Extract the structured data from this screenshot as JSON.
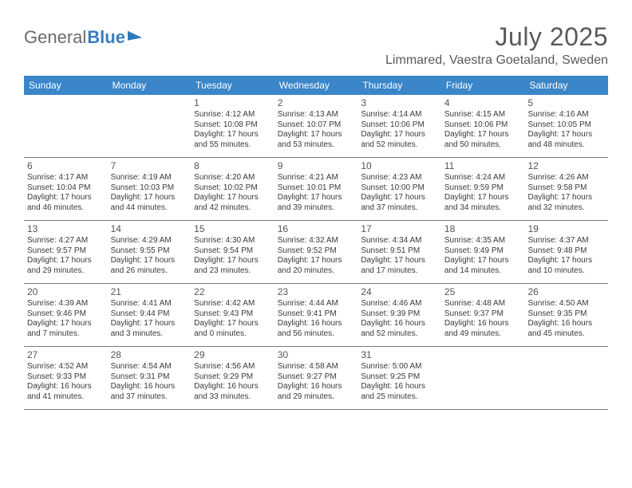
{
  "brand": {
    "part1": "General",
    "part2": "Blue"
  },
  "header": {
    "month_title": "July 2025",
    "location": "Limmared, Vaestra Goetaland, Sweden"
  },
  "colors": {
    "header_bg": "#3a86c8",
    "header_text": "#ffffff",
    "border": "#7a7a7a",
    "body_text": "#3a3a3a",
    "title_text": "#5a5a5a",
    "brand_blue": "#3a7ebf"
  },
  "calendar": {
    "days_of_week": [
      "Sunday",
      "Monday",
      "Tuesday",
      "Wednesday",
      "Thursday",
      "Friday",
      "Saturday"
    ],
    "leading_blanks": 2,
    "days": [
      {
        "n": "1",
        "sunrise": "Sunrise: 4:12 AM",
        "sunset": "Sunset: 10:08 PM",
        "day1": "Daylight: 17 hours",
        "day2": "and 55 minutes."
      },
      {
        "n": "2",
        "sunrise": "Sunrise: 4:13 AM",
        "sunset": "Sunset: 10:07 PM",
        "day1": "Daylight: 17 hours",
        "day2": "and 53 minutes."
      },
      {
        "n": "3",
        "sunrise": "Sunrise: 4:14 AM",
        "sunset": "Sunset: 10:06 PM",
        "day1": "Daylight: 17 hours",
        "day2": "and 52 minutes."
      },
      {
        "n": "4",
        "sunrise": "Sunrise: 4:15 AM",
        "sunset": "Sunset: 10:06 PM",
        "day1": "Daylight: 17 hours",
        "day2": "and 50 minutes."
      },
      {
        "n": "5",
        "sunrise": "Sunrise: 4:16 AM",
        "sunset": "Sunset: 10:05 PM",
        "day1": "Daylight: 17 hours",
        "day2": "and 48 minutes."
      },
      {
        "n": "6",
        "sunrise": "Sunrise: 4:17 AM",
        "sunset": "Sunset: 10:04 PM",
        "day1": "Daylight: 17 hours",
        "day2": "and 46 minutes."
      },
      {
        "n": "7",
        "sunrise": "Sunrise: 4:19 AM",
        "sunset": "Sunset: 10:03 PM",
        "day1": "Daylight: 17 hours",
        "day2": "and 44 minutes."
      },
      {
        "n": "8",
        "sunrise": "Sunrise: 4:20 AM",
        "sunset": "Sunset: 10:02 PM",
        "day1": "Daylight: 17 hours",
        "day2": "and 42 minutes."
      },
      {
        "n": "9",
        "sunrise": "Sunrise: 4:21 AM",
        "sunset": "Sunset: 10:01 PM",
        "day1": "Daylight: 17 hours",
        "day2": "and 39 minutes."
      },
      {
        "n": "10",
        "sunrise": "Sunrise: 4:23 AM",
        "sunset": "Sunset: 10:00 PM",
        "day1": "Daylight: 17 hours",
        "day2": "and 37 minutes."
      },
      {
        "n": "11",
        "sunrise": "Sunrise: 4:24 AM",
        "sunset": "Sunset: 9:59 PM",
        "day1": "Daylight: 17 hours",
        "day2": "and 34 minutes."
      },
      {
        "n": "12",
        "sunrise": "Sunrise: 4:26 AM",
        "sunset": "Sunset: 9:58 PM",
        "day1": "Daylight: 17 hours",
        "day2": "and 32 minutes."
      },
      {
        "n": "13",
        "sunrise": "Sunrise: 4:27 AM",
        "sunset": "Sunset: 9:57 PM",
        "day1": "Daylight: 17 hours",
        "day2": "and 29 minutes."
      },
      {
        "n": "14",
        "sunrise": "Sunrise: 4:29 AM",
        "sunset": "Sunset: 9:55 PM",
        "day1": "Daylight: 17 hours",
        "day2": "and 26 minutes."
      },
      {
        "n": "15",
        "sunrise": "Sunrise: 4:30 AM",
        "sunset": "Sunset: 9:54 PM",
        "day1": "Daylight: 17 hours",
        "day2": "and 23 minutes."
      },
      {
        "n": "16",
        "sunrise": "Sunrise: 4:32 AM",
        "sunset": "Sunset: 9:52 PM",
        "day1": "Daylight: 17 hours",
        "day2": "and 20 minutes."
      },
      {
        "n": "17",
        "sunrise": "Sunrise: 4:34 AM",
        "sunset": "Sunset: 9:51 PM",
        "day1": "Daylight: 17 hours",
        "day2": "and 17 minutes."
      },
      {
        "n": "18",
        "sunrise": "Sunrise: 4:35 AM",
        "sunset": "Sunset: 9:49 PM",
        "day1": "Daylight: 17 hours",
        "day2": "and 14 minutes."
      },
      {
        "n": "19",
        "sunrise": "Sunrise: 4:37 AM",
        "sunset": "Sunset: 9:48 PM",
        "day1": "Daylight: 17 hours",
        "day2": "and 10 minutes."
      },
      {
        "n": "20",
        "sunrise": "Sunrise: 4:39 AM",
        "sunset": "Sunset: 9:46 PM",
        "day1": "Daylight: 17 hours",
        "day2": "and 7 minutes."
      },
      {
        "n": "21",
        "sunrise": "Sunrise: 4:41 AM",
        "sunset": "Sunset: 9:44 PM",
        "day1": "Daylight: 17 hours",
        "day2": "and 3 minutes."
      },
      {
        "n": "22",
        "sunrise": "Sunrise: 4:42 AM",
        "sunset": "Sunset: 9:43 PM",
        "day1": "Daylight: 17 hours",
        "day2": "and 0 minutes."
      },
      {
        "n": "23",
        "sunrise": "Sunrise: 4:44 AM",
        "sunset": "Sunset: 9:41 PM",
        "day1": "Daylight: 16 hours",
        "day2": "and 56 minutes."
      },
      {
        "n": "24",
        "sunrise": "Sunrise: 4:46 AM",
        "sunset": "Sunset: 9:39 PM",
        "day1": "Daylight: 16 hours",
        "day2": "and 52 minutes."
      },
      {
        "n": "25",
        "sunrise": "Sunrise: 4:48 AM",
        "sunset": "Sunset: 9:37 PM",
        "day1": "Daylight: 16 hours",
        "day2": "and 49 minutes."
      },
      {
        "n": "26",
        "sunrise": "Sunrise: 4:50 AM",
        "sunset": "Sunset: 9:35 PM",
        "day1": "Daylight: 16 hours",
        "day2": "and 45 minutes."
      },
      {
        "n": "27",
        "sunrise": "Sunrise: 4:52 AM",
        "sunset": "Sunset: 9:33 PM",
        "day1": "Daylight: 16 hours",
        "day2": "and 41 minutes."
      },
      {
        "n": "28",
        "sunrise": "Sunrise: 4:54 AM",
        "sunset": "Sunset: 9:31 PM",
        "day1": "Daylight: 16 hours",
        "day2": "and 37 minutes."
      },
      {
        "n": "29",
        "sunrise": "Sunrise: 4:56 AM",
        "sunset": "Sunset: 9:29 PM",
        "day1": "Daylight: 16 hours",
        "day2": "and 33 minutes."
      },
      {
        "n": "30",
        "sunrise": "Sunrise: 4:58 AM",
        "sunset": "Sunset: 9:27 PM",
        "day1": "Daylight: 16 hours",
        "day2": "and 29 minutes."
      },
      {
        "n": "31",
        "sunrise": "Sunrise: 5:00 AM",
        "sunset": "Sunset: 9:25 PM",
        "day1": "Daylight: 16 hours",
        "day2": "and 25 minutes."
      }
    ]
  }
}
